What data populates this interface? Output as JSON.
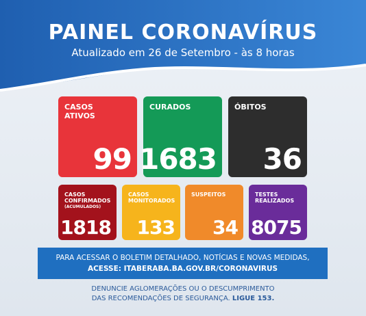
{
  "header": {
    "title": "PAINEL CORONAVÍRUS",
    "subtitle": "Atualizado em 26 de Setembro - às 8 horas"
  },
  "main_cards": [
    {
      "label": "CASOS ATIVOS",
      "value": 99
    },
    {
      "label": "CURADOS",
      "value": 1683
    },
    {
      "label": "ÓBITOS",
      "value": 36
    }
  ],
  "small_cards": [
    {
      "label": "CASOS CONFIRMADOS",
      "note": "(ACUMULADOS)",
      "value": 1818
    },
    {
      "label": "CASOS MONITORADOS",
      "value": 133
    },
    {
      "label": "SUSPEITOS",
      "value": 34
    },
    {
      "label": "TESTES REALIZADOS",
      "value": 8075
    }
  ],
  "banner": {
    "line1": "PARA ACESSAR O BOLETIM DETALHADO, NOTÍCIAS E NOVAS MEDIDAS,",
    "line2": "ACESSE: ITABERABA.BA.GOV.BR/CORONAVIRUS"
  },
  "footer": {
    "line1": "DENUNCIE AGLOMERAÇÕES OU O DESCUMPRIMENTO",
    "line2": "DAS RECOMENDAÇÕES DE SEGURANÇA.",
    "line2_bold": "LIGUE 153."
  }
}
